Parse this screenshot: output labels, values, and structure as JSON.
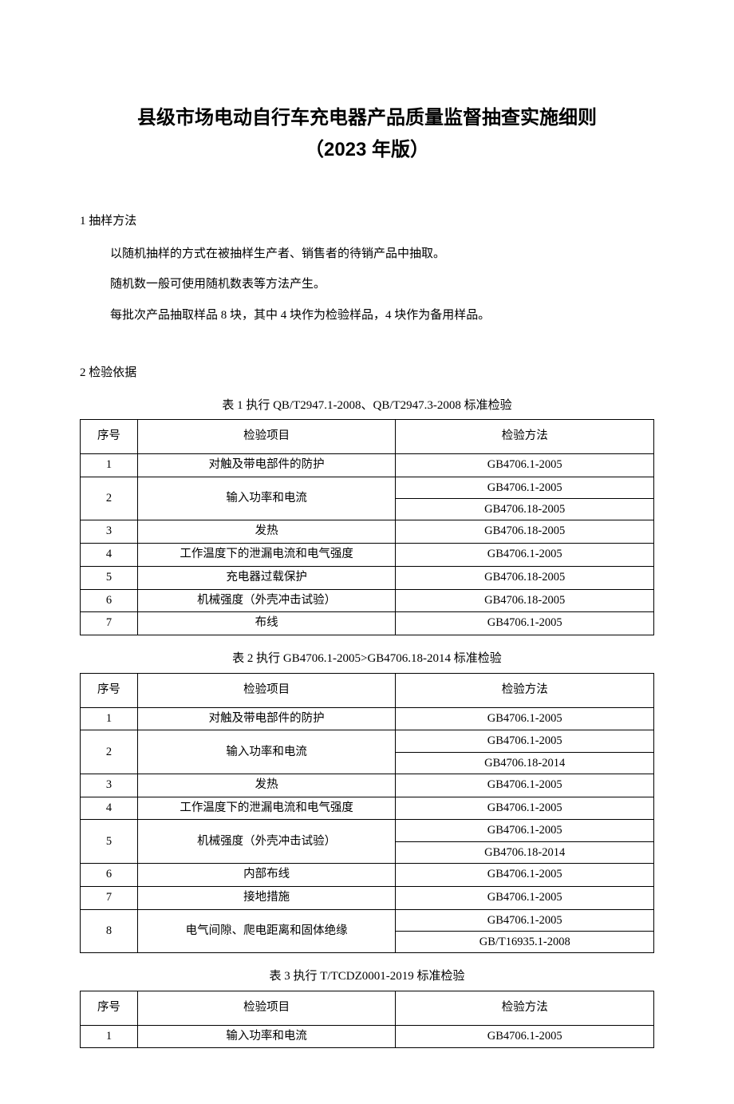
{
  "title": "县级市场电动自行车充电器产品质量监督抽查实施细则",
  "subtitle": "（2023 年版）",
  "section1": {
    "heading": "1 抽样方法",
    "p1": "以随机抽样的方式在被抽样生产者、销售者的待销产品中抽取。",
    "p2": "随机数一般可使用随机数表等方法产生。",
    "p3": "每批次产品抽取样品 8 块，其中 4 块作为检验样品，4 块作为备用样品。"
  },
  "section2": {
    "heading": "2 检验依据"
  },
  "headers": {
    "num": "序号",
    "item": "检验项目",
    "method": "检验方法"
  },
  "table1": {
    "caption": "表 1 执行 QB/T2947.1-2008、QB/T2947.3-2008 标准检验",
    "rows": [
      {
        "num": "1",
        "item": "对触及带电部件的防护",
        "method": [
          "GB4706.1-2005"
        ]
      },
      {
        "num": "2",
        "item": "输入功率和电流",
        "method": [
          "GB4706.1-2005",
          "GB4706.18-2005"
        ]
      },
      {
        "num": "3",
        "item": "发热",
        "method": [
          "GB4706.18-2005"
        ]
      },
      {
        "num": "4",
        "item": "工作温度下的泄漏电流和电气强度",
        "method": [
          "GB4706.1-2005"
        ]
      },
      {
        "num": "5",
        "item": "充电器过载保护",
        "method": [
          "GB4706.18-2005"
        ]
      },
      {
        "num": "6",
        "item": "机械强度（外壳冲击试验）",
        "method": [
          "GB4706.18-2005"
        ]
      },
      {
        "num": "7",
        "item": "布线",
        "method": [
          "GB4706.1-2005"
        ]
      }
    ]
  },
  "table2": {
    "caption": "表 2 执行 GB4706.1-2005>GB4706.18-2014 标准检验",
    "rows": [
      {
        "num": "1",
        "item": "对触及带电部件的防护",
        "method": [
          "GB4706.1-2005"
        ]
      },
      {
        "num": "2",
        "item": "输入功率和电流",
        "method": [
          "GB4706.1-2005",
          "GB4706.18-2014"
        ]
      },
      {
        "num": "3",
        "item": "发热",
        "method": [
          "GB4706.1-2005"
        ]
      },
      {
        "num": "4",
        "item": "工作温度下的泄漏电流和电气强度",
        "method": [
          "GB4706.1-2005"
        ]
      },
      {
        "num": "5",
        "item": "机械强度（外壳冲击试验）",
        "method": [
          "GB4706.1-2005",
          "GB4706.18-2014"
        ]
      },
      {
        "num": "6",
        "item": "内部布线",
        "method": [
          "GB4706.1-2005"
        ]
      },
      {
        "num": "7",
        "item": "接地措施",
        "method": [
          "GB4706.1-2005"
        ]
      },
      {
        "num": "8",
        "item": "电气间隙、爬电距离和固体绝缘",
        "method": [
          "GB4706.1-2005",
          "GB/T16935.1-2008"
        ]
      }
    ]
  },
  "table3": {
    "caption": "表 3 执行 T/TCDZ0001-2019 标准检验",
    "rows": [
      {
        "num": "1",
        "item": "输入功率和电流",
        "method": [
          "GB4706.1-2005"
        ]
      }
    ]
  }
}
